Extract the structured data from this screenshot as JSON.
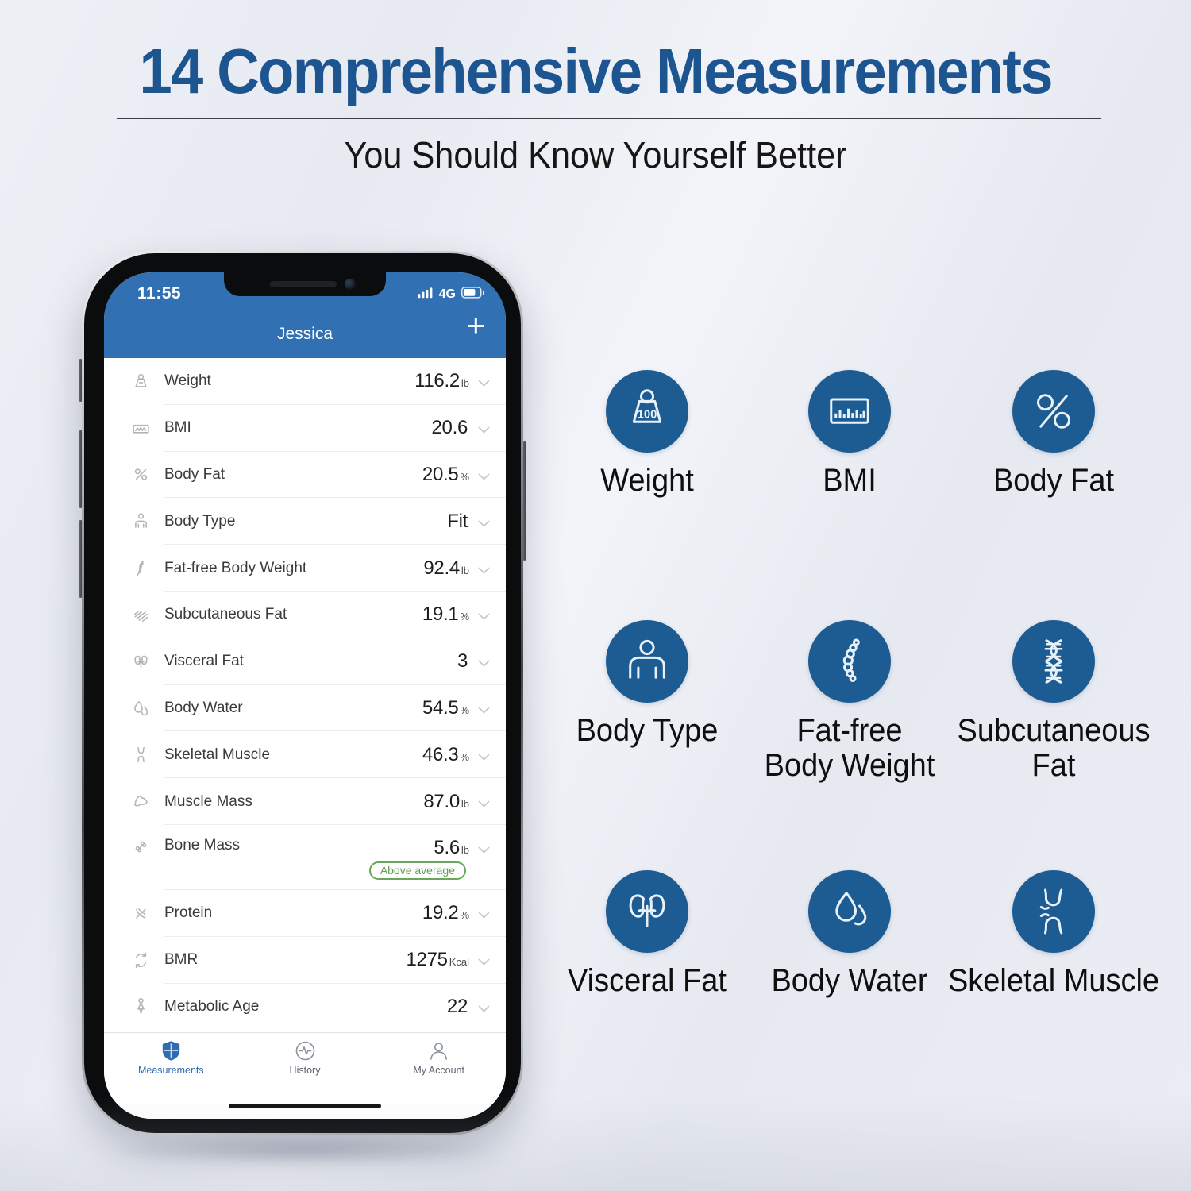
{
  "page": {
    "title": "14 Comprehensive Measurements",
    "subtitle": "You Should Know Yourself Better"
  },
  "colors": {
    "title_blue": "#1d5591",
    "header_blue": "#3170b3",
    "circle_blue": "#1d5c93",
    "active_tab_blue": "#2e6cb0",
    "badge_green": "#67a757"
  },
  "phone": {
    "status": {
      "time": "11:55",
      "network": "4G",
      "battery_icon": "battery-icon",
      "signal_icon": "signal-bars-icon"
    },
    "header": {
      "title": "Jessica",
      "add_label": "+"
    },
    "measurements": [
      {
        "icon": "weight-icon",
        "label": "Weight",
        "value": "116.2",
        "unit": "lb"
      },
      {
        "icon": "bmi-icon",
        "label": "BMI",
        "value": "20.6",
        "unit": ""
      },
      {
        "icon": "body-fat-icon",
        "label": "Body Fat",
        "value": "20.5",
        "unit": "%"
      },
      {
        "icon": "body-type-icon",
        "label": "Body Type",
        "value": "Fit",
        "unit": ""
      },
      {
        "icon": "fat-free-icon",
        "label": "Fat-free Body Weight",
        "value": "92.4",
        "unit": "lb"
      },
      {
        "icon": "subcutaneous-fat-icon",
        "label": "Subcutaneous Fat",
        "value": "19.1",
        "unit": "%"
      },
      {
        "icon": "visceral-fat-icon",
        "label": "Visceral Fat",
        "value": "3",
        "unit": ""
      },
      {
        "icon": "body-water-icon",
        "label": "Body Water",
        "value": "54.5",
        "unit": "%"
      },
      {
        "icon": "skeletal-muscle-icon",
        "label": "Skeletal Muscle",
        "value": "46.3",
        "unit": "%"
      },
      {
        "icon": "muscle-mass-icon",
        "label": "Muscle Mass",
        "value": "87.0",
        "unit": "lb"
      },
      {
        "icon": "bone-mass-icon",
        "label": "Bone Mass",
        "value": "5.6",
        "unit": "lb",
        "badge": "Above average"
      },
      {
        "icon": "protein-icon",
        "label": "Protein",
        "value": "19.2",
        "unit": "%"
      },
      {
        "icon": "bmr-icon",
        "label": "BMR",
        "value": "1275",
        "unit": "Kcal"
      },
      {
        "icon": "metabolic-age-icon",
        "label": "Metabolic Age",
        "value": "22",
        "unit": ""
      }
    ],
    "tabs": [
      {
        "icon": "measurements-tab-icon",
        "label": "Measurements",
        "active": true
      },
      {
        "icon": "history-tab-icon",
        "label": "History",
        "active": false
      },
      {
        "icon": "my-account-tab-icon",
        "label": "My Account",
        "active": false
      }
    ]
  },
  "features": [
    {
      "icon": "weight-circle-icon",
      "lines": [
        "Weight"
      ]
    },
    {
      "icon": "bmi-circle-icon",
      "lines": [
        "BMI"
      ]
    },
    {
      "icon": "body-fat-circle-icon",
      "lines": [
        "Body Fat"
      ]
    },
    {
      "icon": "body-type-circle-icon",
      "lines": [
        "Body Type"
      ]
    },
    {
      "icon": "fat-free-circle-icon",
      "lines": [
        "Fat-free",
        "Body Weight"
      ]
    },
    {
      "icon": "subcutaneous-circle-icon",
      "lines": [
        "Subcutaneous",
        "Fat"
      ]
    },
    {
      "icon": "visceral-fat-circle-icon",
      "lines": [
        "Visceral Fat"
      ]
    },
    {
      "icon": "body-water-circle-icon",
      "lines": [
        "Body Water"
      ]
    },
    {
      "icon": "skeletal-muscle-circle-icon",
      "lines": [
        "Skeletal Muscle"
      ]
    }
  ]
}
